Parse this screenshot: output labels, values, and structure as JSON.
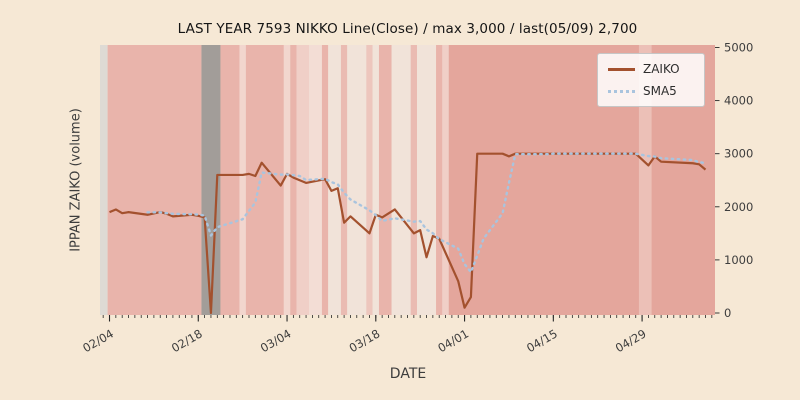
{
  "page": {
    "background_color": "#f6e8d5"
  },
  "chart_data": {
    "type": "line",
    "title": "LAST YEAR 7593 NIKKO Line(Close) / max 3,000 / last(05/09) 2,700",
    "xlabel": "DATE",
    "ylabel": "IPPAN ZAIKO (volume)",
    "ylim": [
      0,
      5000
    ],
    "yticks": [
      0,
      1000,
      2000,
      3000,
      4000,
      5000
    ],
    "xticks": [
      "02/04",
      "02/18",
      "03/04",
      "03/18",
      "04/01",
      "04/15",
      "04/29"
    ],
    "legend_position": "upper right",
    "grid": false,
    "x_dates": [
      "02/04",
      "02/05",
      "02/06",
      "02/07",
      "02/10",
      "02/12",
      "02/13",
      "02/14",
      "02/17",
      "02/18",
      "02/19",
      "02/20",
      "02/21",
      "02/25",
      "02/26",
      "02/27",
      "02/28",
      "03/03",
      "03/04",
      "03/05",
      "03/06",
      "03/07",
      "03/10",
      "03/11",
      "03/12",
      "03/13",
      "03/14",
      "03/17",
      "03/18",
      "03/19",
      "03/21",
      "03/24",
      "03/25",
      "03/26",
      "03/27",
      "03/28",
      "03/31",
      "04/01",
      "04/02",
      "04/03",
      "04/04",
      "04/07",
      "04/08",
      "04/09",
      "04/10",
      "04/11",
      "04/14",
      "04/15",
      "04/16",
      "04/17",
      "04/18",
      "04/21",
      "04/22",
      "04/23",
      "04/24",
      "04/25",
      "04/28",
      "04/30",
      "05/01",
      "05/02",
      "05/07",
      "05/08",
      "05/09"
    ],
    "series": [
      {
        "name": "ZAIKO",
        "color": "#a3512e",
        "style": "solid",
        "values": [
          1900,
          1950,
          1880,
          1900,
          1850,
          1900,
          1870,
          1820,
          1850,
          1830,
          1800,
          0,
          2600,
          2600,
          2620,
          2580,
          2830,
          2400,
          2620,
          2550,
          2500,
          2450,
          2520,
          2300,
          2350,
          1700,
          1820,
          1500,
          1850,
          1800,
          1950,
          1500,
          1560,
          1050,
          1450,
          1400,
          600,
          100,
          300,
          3000,
          3000,
          3000,
          2950,
          3000,
          3000,
          3000,
          3000,
          3000,
          3000,
          3000,
          3000,
          3000,
          3000,
          3000,
          3000,
          3000,
          3000,
          2780,
          2950,
          2850,
          2820,
          2800,
          2700
        ]
      },
      {
        "name": "SMA5",
        "color": "#a9c4de",
        "style": "dotted",
        "derived_from": "ZAIKO",
        "window": 5
      }
    ],
    "base_band_color": "#efe9e0",
    "background_bands": [
      [
        -1.5,
        -0.3,
        "#dedad4"
      ],
      [
        -0.3,
        14.5,
        "#e9b4ab"
      ],
      [
        14.5,
        17.5,
        "#a29d99"
      ],
      [
        17.5,
        20.5,
        "#e9b4ab"
      ],
      [
        20.5,
        21.5,
        "#f2d6ce"
      ],
      [
        21.5,
        27.5,
        "#e9b4ab"
      ],
      [
        27.5,
        28.5,
        "#f2d6ce"
      ],
      [
        28.5,
        29.5,
        "#e9b4ab"
      ],
      [
        29.5,
        31.5,
        "#f0cfc7"
      ],
      [
        31.5,
        33.5,
        "#f3ddd5"
      ],
      [
        33.5,
        34.5,
        "#e9b4ab"
      ],
      [
        34.5,
        36.5,
        "#f1e3d9"
      ],
      [
        36.5,
        37.5,
        "#eabbb2"
      ],
      [
        37.5,
        40.5,
        "#f1e3d9"
      ],
      [
        40.5,
        41.5,
        "#edc6bd"
      ],
      [
        41.5,
        42.5,
        "#f1e3d9"
      ],
      [
        42.5,
        44.5,
        "#e9b4ab"
      ],
      [
        44.5,
        47.5,
        "#f1e3d9"
      ],
      [
        47.5,
        48.5,
        "#eabbb2"
      ],
      [
        48.5,
        51.5,
        "#f1e3d9"
      ],
      [
        51.5,
        52.5,
        "#e9b4ab"
      ],
      [
        52.5,
        53.5,
        "#f0cfc7"
      ],
      [
        53.5,
        95.5,
        "#e4a69c"
      ],
      [
        83.5,
        85.5,
        "#ecc0b7"
      ]
    ]
  }
}
